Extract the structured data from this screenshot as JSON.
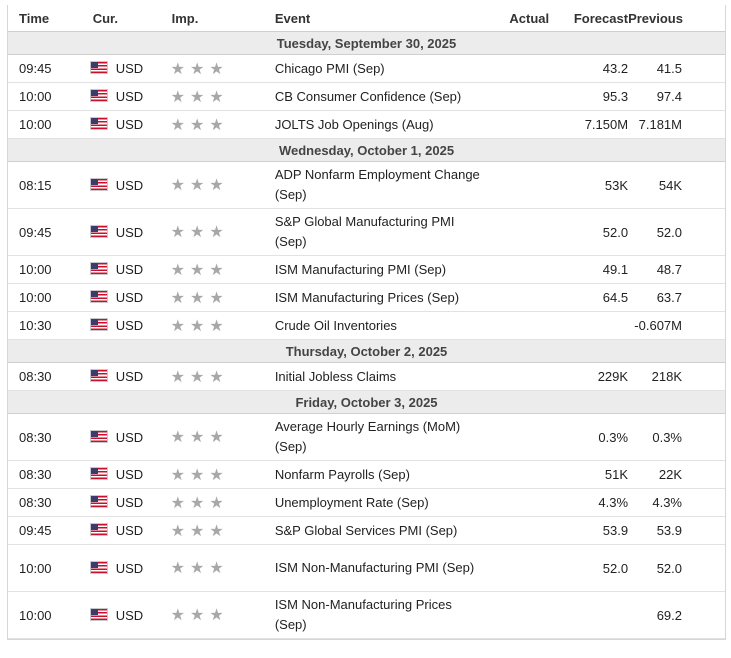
{
  "header": {
    "time": "Time",
    "cur": "Cur.",
    "imp": "Imp.",
    "event": "Event",
    "actual": "Actual",
    "forecast": "Forecast",
    "previous": "Previous"
  },
  "days": [
    {
      "date": "Tuesday, September 30, 2025",
      "events": [
        {
          "time": "09:45",
          "cur": "USD",
          "event": "Chicago PMI (Sep)",
          "actual": "",
          "forecast": "43.2",
          "previous": "41.5"
        },
        {
          "time": "10:00",
          "cur": "USD",
          "event": "CB Consumer Confidence (Sep)",
          "actual": "",
          "forecast": "95.3",
          "previous": "97.4"
        },
        {
          "time": "10:00",
          "cur": "USD",
          "event": "JOLTS Job Openings (Aug)",
          "actual": "",
          "forecast": "7.150M",
          "previous": "7.181M"
        }
      ]
    },
    {
      "date": "Wednesday, October 1, 2025",
      "events": [
        {
          "time": "08:15",
          "cur": "USD",
          "event": "ADP Nonfarm Employment Change (Sep)",
          "actual": "",
          "forecast": "53K",
          "previous": "54K"
        },
        {
          "time": "09:45",
          "cur": "USD",
          "event": "S&P Global Manufacturing PMI (Sep)",
          "actual": "",
          "forecast": "52.0",
          "previous": "52.0"
        },
        {
          "time": "10:00",
          "cur": "USD",
          "event": "ISM Manufacturing PMI (Sep)",
          "actual": "",
          "forecast": "49.1",
          "previous": "48.7"
        },
        {
          "time": "10:00",
          "cur": "USD",
          "event": "ISM Manufacturing Prices (Sep)",
          "actual": "",
          "forecast": "64.5",
          "previous": "63.7"
        },
        {
          "time": "10:30",
          "cur": "USD",
          "event": "Crude Oil Inventories",
          "actual": "",
          "forecast": "",
          "previous": "-0.607M"
        }
      ]
    },
    {
      "date": "Thursday, October 2, 2025",
      "events": [
        {
          "time": "08:30",
          "cur": "USD",
          "event": "Initial Jobless Claims",
          "actual": "",
          "forecast": "229K",
          "previous": "218K"
        }
      ]
    },
    {
      "date": "Friday, October 3, 2025",
      "events": [
        {
          "time": "08:30",
          "cur": "USD",
          "event": "Average Hourly Earnings (MoM) (Sep)",
          "actual": "",
          "forecast": "0.3%",
          "previous": "0.3%"
        },
        {
          "time": "08:30",
          "cur": "USD",
          "event": "Nonfarm Payrolls (Sep)",
          "actual": "",
          "forecast": "51K",
          "previous": "22K"
        },
        {
          "time": "08:30",
          "cur": "USD",
          "event": "Unemployment Rate (Sep)",
          "actual": "",
          "forecast": "4.3%",
          "previous": "4.3%"
        },
        {
          "time": "09:45",
          "cur": "USD",
          "event": "S&P Global Services PMI (Sep)",
          "actual": "",
          "forecast": "53.9",
          "previous": "53.9"
        },
        {
          "time": "10:00",
          "cur": "USD",
          "event": "ISM Non-Manufacturing PMI (Sep)",
          "actual": "",
          "forecast": "52.0",
          "previous": "52.0"
        },
        {
          "time": "10:00",
          "cur": "USD",
          "event": "ISM Non-Manufacturing Prices (Sep)",
          "actual": "",
          "forecast": "",
          "previous": "69.2"
        }
      ]
    }
  ],
  "icons": {
    "flag": "us-flag-icon",
    "importance": "star-icon"
  },
  "colors": {
    "day_row_bg": "#ececec",
    "star": "#a8a8a8",
    "border": "#d6d6d6"
  }
}
